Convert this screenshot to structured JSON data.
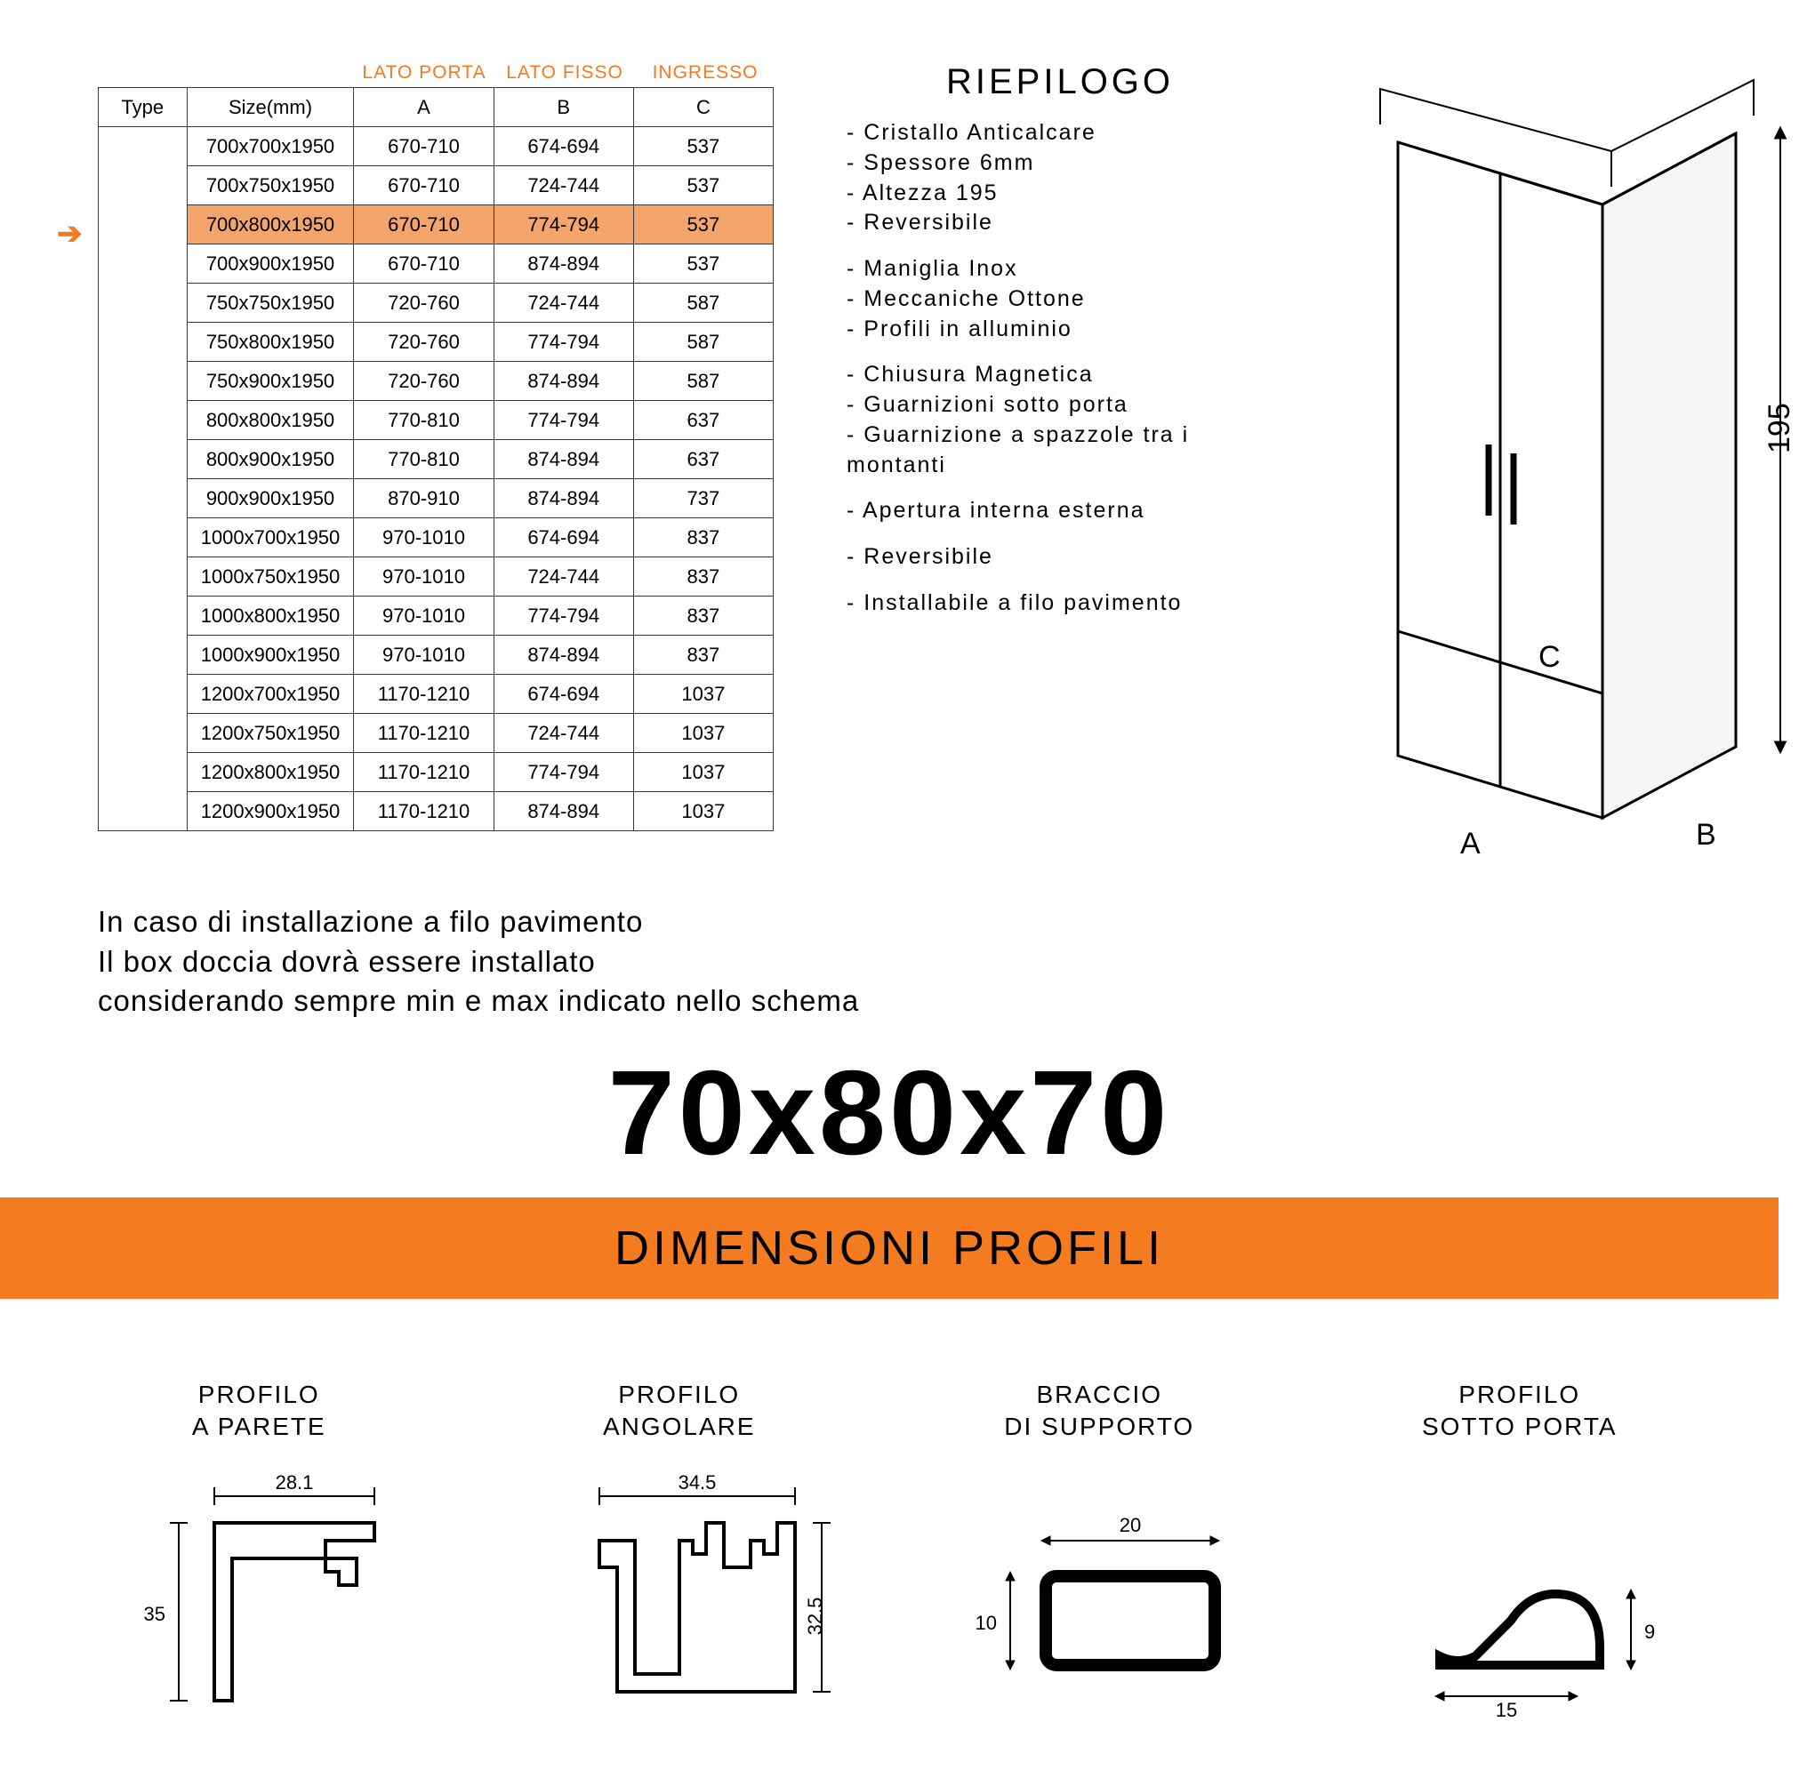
{
  "colors": {
    "accent": "#f47b20",
    "highlight_row": "#f4a56b",
    "border": "#3a3a3a",
    "text": "#000000",
    "bg": "#ffffff"
  },
  "table": {
    "col_label_1": "LATO PORTA",
    "col_label_2": "LATO FISSO",
    "col_label_3": "INGRESSO",
    "headers": {
      "type": "Type",
      "size": "Size(mm)",
      "a": "A",
      "b": "B",
      "c": "C"
    },
    "highlight_index": 2,
    "rows": [
      {
        "size": "700x700x1950",
        "a": "670-710",
        "b": "674-694",
        "c": "537"
      },
      {
        "size": "700x750x1950",
        "a": "670-710",
        "b": "724-744",
        "c": "537"
      },
      {
        "size": "700x800x1950",
        "a": "670-710",
        "b": "774-794",
        "c": "537"
      },
      {
        "size": "700x900x1950",
        "a": "670-710",
        "b": "874-894",
        "c": "537"
      },
      {
        "size": "750x750x1950",
        "a": "720-760",
        "b": "724-744",
        "c": "587"
      },
      {
        "size": "750x800x1950",
        "a": "720-760",
        "b": "774-794",
        "c": "587"
      },
      {
        "size": "750x900x1950",
        "a": "720-760",
        "b": "874-894",
        "c": "587"
      },
      {
        "size": "800x800x1950",
        "a": "770-810",
        "b": "774-794",
        "c": "637"
      },
      {
        "size": "800x900x1950",
        "a": "770-810",
        "b": "874-894",
        "c": "637"
      },
      {
        "size": "900x900x1950",
        "a": "870-910",
        "b": "874-894",
        "c": "737"
      },
      {
        "size": "1000x700x1950",
        "a": "970-1010",
        "b": "674-694",
        "c": "837"
      },
      {
        "size": "1000x750x1950",
        "a": "970-1010",
        "b": "724-744",
        "c": "837"
      },
      {
        "size": "1000x800x1950",
        "a": "970-1010",
        "b": "774-794",
        "c": "837"
      },
      {
        "size": "1000x900x1950",
        "a": "970-1010",
        "b": "874-894",
        "c": "837"
      },
      {
        "size": "1200x700x1950",
        "a": "1170-1210",
        "b": "674-694",
        "c": "1037"
      },
      {
        "size": "1200x750x1950",
        "a": "1170-1210",
        "b": "724-744",
        "c": "1037"
      },
      {
        "size": "1200x800x1950",
        "a": "1170-1210",
        "b": "774-794",
        "c": "1037"
      },
      {
        "size": "1200x900x1950",
        "a": "1170-1210",
        "b": "874-894",
        "c": "1037"
      }
    ]
  },
  "riepilogo": {
    "title": "RIEPILOGO",
    "groups": [
      [
        "Cristallo Anticalcare",
        "Spessore 6mm",
        "Altezza 195",
        "Reversibile"
      ],
      [
        "Maniglia Inox",
        "Meccaniche Ottone",
        "Profili in alluminio"
      ],
      [
        "Chiusura Magnetica",
        "Guarnizioni sotto porta",
        "Guarnizione a spazzole tra i montanti"
      ],
      [
        "Apertura interna esterna"
      ],
      [
        "Reversibile"
      ],
      [
        "Installabile a filo pavimento"
      ]
    ]
  },
  "shower": {
    "label_a": "A",
    "label_b": "B",
    "label_c": "C",
    "height_label": "195"
  },
  "install_note": {
    "l1": "In caso di installazione a filo pavimento",
    "l2": "Il box doccia dovrà essere installato",
    "l3": "considerando sempre min e max indicato nello schema"
  },
  "big_dimension": "70x80x70",
  "banner": "DIMENSIONI PROFILI",
  "profiles": {
    "p1": {
      "title_l1": "PROFILO",
      "title_l2": "A PARETE",
      "w": "28.1",
      "h": "35"
    },
    "p2": {
      "title_l1": "PROFILO",
      "title_l2": "ANGOLARE",
      "w": "34.5",
      "h": "32.5"
    },
    "p3": {
      "title_l1": "BRACCIO",
      "title_l2": "DI SUPPORTO",
      "w": "20",
      "h": "10"
    },
    "p4": {
      "title_l1": "PROFILO",
      "title_l2": "SOTTO PORTA",
      "w": "15",
      "h": "9"
    }
  }
}
